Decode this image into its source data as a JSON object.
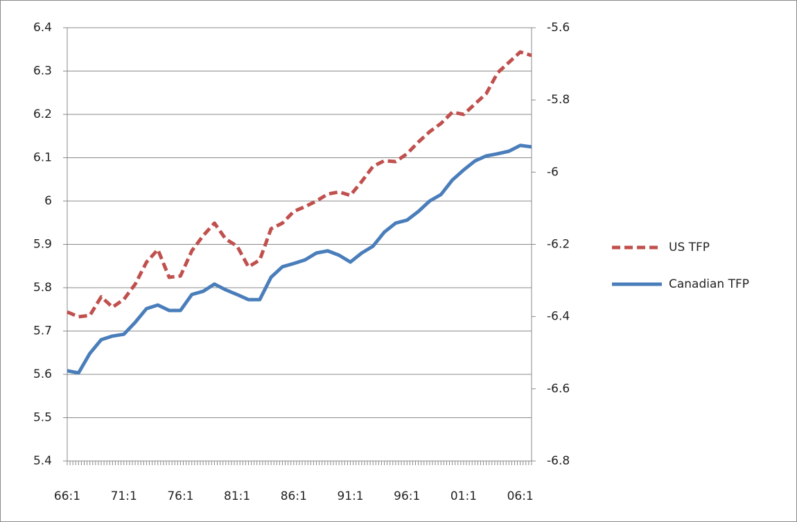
{
  "chart_data": {
    "type": "line",
    "categories": [
      "66:1",
      null,
      null,
      null,
      null,
      "71:1",
      null,
      null,
      null,
      null,
      "76:1",
      null,
      null,
      null,
      null,
      "81:1",
      null,
      null,
      null,
      null,
      "86:1",
      null,
      null,
      null,
      null,
      "91:1",
      null,
      null,
      null,
      null,
      "96:1",
      null,
      null,
      null,
      null,
      "01:1",
      null,
      null,
      null,
      null,
      "06:1",
      null
    ],
    "series": [
      {
        "name": "US TFP",
        "color": "#c0504d",
        "dash": true,
        "axis": "y",
        "values": [
          5.744,
          5.733,
          5.736,
          5.779,
          5.755,
          5.773,
          5.808,
          5.859,
          5.888,
          5.824,
          5.827,
          5.885,
          5.92,
          5.949,
          5.912,
          5.896,
          5.848,
          5.864,
          5.936,
          5.949,
          5.976,
          5.987,
          6.0,
          6.016,
          6.021,
          6.013,
          6.045,
          6.08,
          6.093,
          6.091,
          6.109,
          6.136,
          6.16,
          6.179,
          6.205,
          6.2,
          6.224,
          6.248,
          6.296,
          6.32,
          6.344,
          6.336
        ]
      },
      {
        "name": "Canadian TFP",
        "color": "#4a7ebb",
        "dash": false,
        "axis": "y2",
        "values": [
          -6.55,
          -6.556,
          -6.502,
          -6.464,
          -6.454,
          -6.449,
          -6.416,
          -6.378,
          -6.368,
          -6.383,
          -6.383,
          -6.339,
          -6.33,
          -6.31,
          -6.326,
          -6.339,
          -6.353,
          -6.353,
          -6.291,
          -6.262,
          -6.253,
          -6.243,
          -6.224,
          -6.218,
          -6.23,
          -6.249,
          -6.224,
          -6.205,
          -6.166,
          -6.141,
          -6.133,
          -6.109,
          -6.08,
          -6.062,
          -6.022,
          -5.994,
          -5.969,
          -5.955,
          -5.949,
          -5.942,
          -5.926,
          -5.93
        ]
      }
    ],
    "ylim": [
      5.4,
      6.4
    ],
    "yticks": [
      5.4,
      5.5,
      5.6,
      5.7,
      5.8,
      5.9,
      6,
      6.1,
      6.2,
      6.3,
      6.4
    ],
    "y2lim": [
      -6.8,
      -5.6
    ],
    "y2ticks": [
      -6.8,
      -6.6,
      -6.4,
      -6.2,
      -6,
      -5.8,
      -5.6
    ],
    "grid": true,
    "legend": "right"
  }
}
